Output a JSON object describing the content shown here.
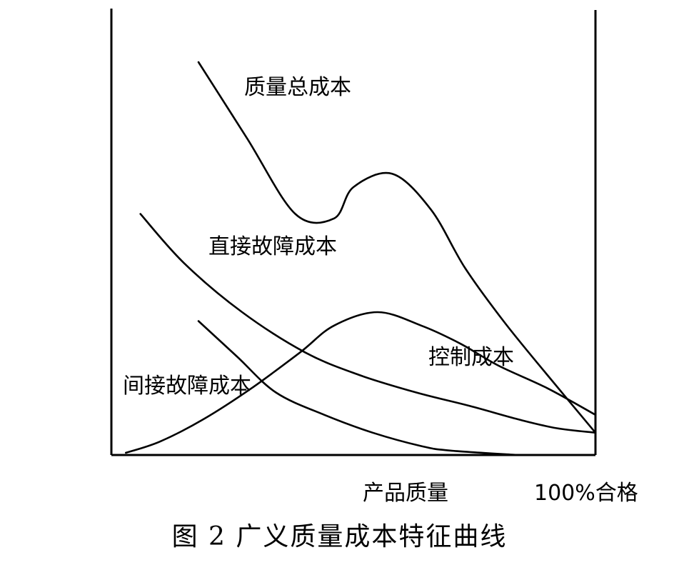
{
  "chart_data": {
    "type": "line",
    "title": "",
    "xlabel": "产品质量",
    "x_end_label": "100%合格",
    "ylabel": "",
    "xlim": [
      0,
      100
    ],
    "ylim": [
      0,
      100
    ],
    "grid": false,
    "series": [
      {
        "name": "质量总成本",
        "x": [
          18,
          28,
          38,
          46,
          50,
          58,
          66,
          73,
          81,
          90,
          100
        ],
        "y": [
          88,
          71,
          54,
          53,
          60,
          63,
          55,
          42,
          30,
          18,
          5
        ]
      },
      {
        "name": "直接故障成本",
        "x": [
          6,
          15,
          27,
          40,
          51,
          63,
          74,
          84,
          92,
          100
        ],
        "y": [
          54,
          43,
          32,
          23,
          18,
          14,
          11,
          8,
          6,
          5
        ]
      },
      {
        "name": "间接故障成本",
        "x": [
          18,
          26,
          34,
          44,
          54,
          64,
          70,
          84
        ],
        "y": [
          30,
          22,
          14,
          9,
          5,
          2,
          1,
          0
        ]
      },
      {
        "name": "控制成本",
        "x": [
          3,
          10,
          19,
          29,
          39,
          46,
          55,
          64,
          72,
          80,
          90,
          100
        ],
        "y": [
          0.5,
          3,
          8,
          15,
          23,
          29,
          32,
          29,
          25,
          20,
          15,
          9
        ]
      }
    ]
  },
  "figure_caption": "图 2   广义质量成本特征曲线"
}
